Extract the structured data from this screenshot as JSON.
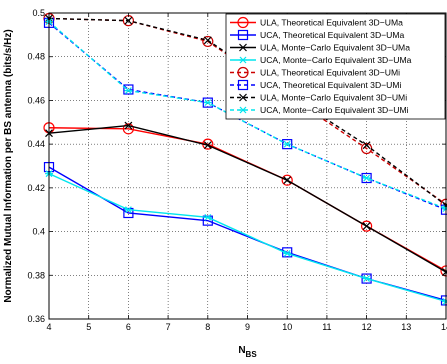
{
  "chart_data": {
    "type": "line",
    "xlabel": "N",
    "xlabel_sub": "BS",
    "ylabel": "Normalized Mutual Information per BS antenna (bits/s/Hz)",
    "xlim": [
      4,
      14
    ],
    "ylim": [
      0.36,
      0.5
    ],
    "x_ticks": [
      "4",
      "5",
      "6",
      "7",
      "8",
      "9",
      "10",
      "11",
      "12",
      "13",
      "14"
    ],
    "y_ticks": [
      "0.36",
      "0.38",
      "0.4",
      "0.42",
      "0.44",
      "0.46",
      "0.48",
      "0.5"
    ],
    "grid": true,
    "legend_position": "top-right",
    "x": [
      4,
      6,
      8,
      10,
      12,
      14
    ],
    "series": [
      {
        "name": "ULA, Theoretical Equivalent 3D−UMa",
        "color": "#ff0000",
        "dash": "solid",
        "marker": "circle",
        "values": [
          0.4475,
          0.447,
          0.44,
          0.4235,
          0.4025,
          0.382
        ]
      },
      {
        "name": "UCA, Theoretical Equivalent 3D−UMa",
        "color": "#0000ff",
        "dash": "solid",
        "marker": "square",
        "values": [
          0.4295,
          0.4085,
          0.405,
          0.3905,
          0.3785,
          0.3685
        ]
      },
      {
        "name": "ULA, Monte−Carlo Equivalent 3D−UMa",
        "color": "#000000",
        "dash": "solid",
        "marker": "x",
        "values": [
          0.445,
          0.4485,
          0.4395,
          0.4235,
          0.4025,
          0.3815
        ]
      },
      {
        "name": "UCA, Monte−Carlo Equivalent 3D−UMa",
        "color": "#00e5ee",
        "dash": "solid",
        "marker": "asterisk",
        "values": [
          0.4265,
          0.41,
          0.4065,
          0.39,
          0.3785,
          0.368
        ]
      },
      {
        "name": "ULA, Theoretical Equivalent 3D−UMi",
        "color": "#cc0000",
        "dash": "dashed",
        "marker": "circle",
        "values": [
          0.4975,
          0.4965,
          0.487,
          0.4625,
          0.438,
          0.4125
        ]
      },
      {
        "name": "UCA, Theoretical Equivalent 3D−UMi",
        "color": "#0000ff",
        "dash": "dashed",
        "marker": "square",
        "values": [
          0.4955,
          0.465,
          0.459,
          0.44,
          0.4245,
          0.41
        ]
      },
      {
        "name": "ULA, Monte−Carlo Equivalent 3D−UMi",
        "color": "#000000",
        "dash": "dashed",
        "marker": "x",
        "values": [
          0.4975,
          0.4965,
          0.4875,
          0.463,
          0.4395,
          0.412
        ]
      },
      {
        "name": "UCA, Monte−Carlo Equivalent 3D−UMi",
        "color": "#00e5ee",
        "dash": "dashed",
        "marker": "asterisk",
        "values": [
          0.496,
          0.4645,
          0.459,
          0.44,
          0.4245,
          0.4105
        ]
      }
    ]
  }
}
